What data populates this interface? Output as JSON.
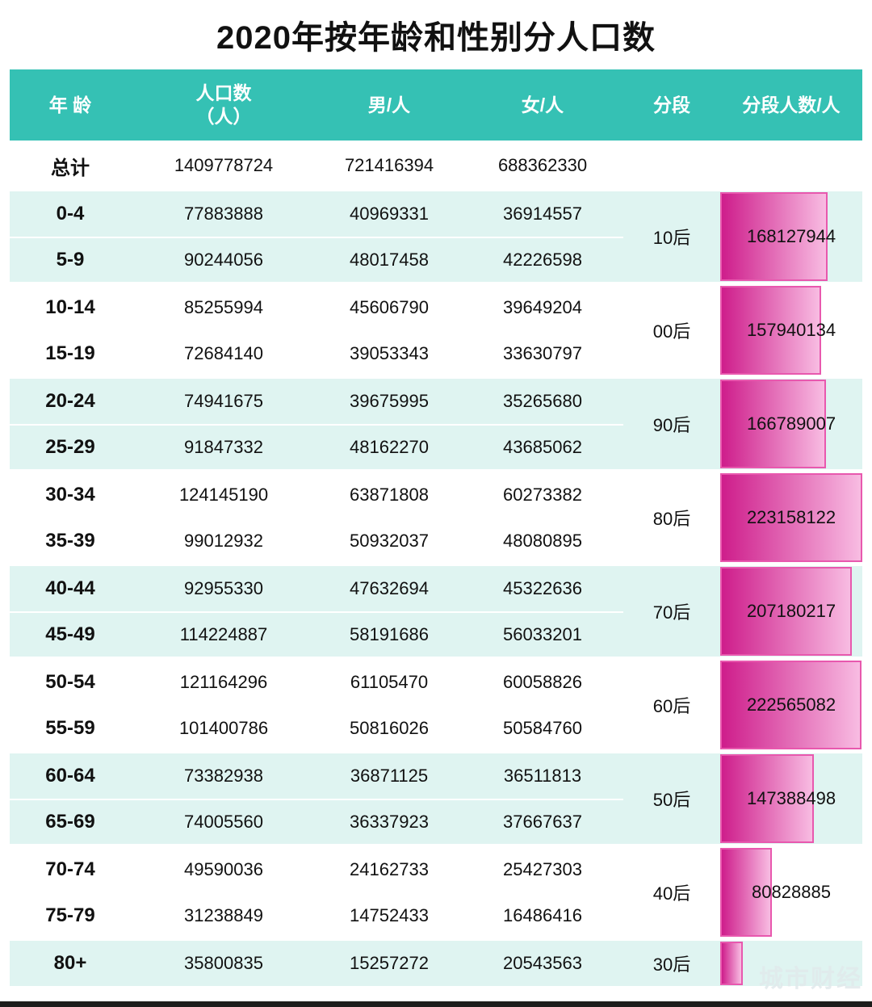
{
  "title": "2020年按年龄和性别分人口数",
  "watermark": "城市财经",
  "colors": {
    "header_bg": "#35c1b4",
    "alt_row_bg": "#dff4f1",
    "bar_gradient_start": "#ce1d8b",
    "bar_gradient_end": "#f8bce2",
    "bar_border": "#e858ae",
    "header_text": "#ffffff",
    "body_text": "#111111"
  },
  "chart_data": {
    "type": "table",
    "title": "2020年按年龄和性别分人口数",
    "headers": {
      "age": "年 龄",
      "population_line1": "人口数",
      "population_line2": "（人）",
      "male": "男/人",
      "female": "女/人",
      "segment": "分段",
      "segment_count": "分段人数/人"
    },
    "total": {
      "label": "总计",
      "population": "1409778724",
      "male": "721416394",
      "female": "688362330"
    },
    "bar_max_value": 223158122,
    "groups": [
      {
        "segment": "10后",
        "segment_value": "168127944",
        "bar_pct": 75.3,
        "rows": [
          {
            "age": "0-4",
            "population": "77883888",
            "male": "40969331",
            "female": "36914557"
          },
          {
            "age": "5-9",
            "population": "90244056",
            "male": "48017458",
            "female": "42226598"
          }
        ]
      },
      {
        "segment": "00后",
        "segment_value": "157940134",
        "bar_pct": 70.8,
        "rows": [
          {
            "age": "10-14",
            "population": "85255994",
            "male": "45606790",
            "female": "39649204"
          },
          {
            "age": "15-19",
            "population": "72684140",
            "male": "39053343",
            "female": "33630797"
          }
        ]
      },
      {
        "segment": "90后",
        "segment_value": "166789007",
        "bar_pct": 74.7,
        "rows": [
          {
            "age": "20-24",
            "population": "74941675",
            "male": "39675995",
            "female": "35265680"
          },
          {
            "age": "25-29",
            "population": "91847332",
            "male": "48162270",
            "female": "43685062"
          }
        ]
      },
      {
        "segment": "80后",
        "segment_value": "223158122",
        "bar_pct": 100,
        "rows": [
          {
            "age": "30-34",
            "population": "124145190",
            "male": "63871808",
            "female": "60273382"
          },
          {
            "age": "35-39",
            "population": "99012932",
            "male": "50932037",
            "female": "48080895"
          }
        ]
      },
      {
        "segment": "70后",
        "segment_value": "207180217",
        "bar_pct": 92.8,
        "rows": [
          {
            "age": "40-44",
            "population": "92955330",
            "male": "47632694",
            "female": "45322636"
          },
          {
            "age": "45-49",
            "population": "114224887",
            "male": "58191686",
            "female": "56033201"
          }
        ]
      },
      {
        "segment": "60后",
        "segment_value": "222565082",
        "bar_pct": 99.7,
        "rows": [
          {
            "age": "50-54",
            "population": "121164296",
            "male": "61105470",
            "female": "60058826"
          },
          {
            "age": "55-59",
            "population": "101400786",
            "male": "50816026",
            "female": "50584760"
          }
        ]
      },
      {
        "segment": "50后",
        "segment_value": "147388498",
        "bar_pct": 66.0,
        "rows": [
          {
            "age": "60-64",
            "population": "73382938",
            "male": "36871125",
            "female": "36511813"
          },
          {
            "age": "65-69",
            "population": "74005560",
            "male": "36337923",
            "female": "37667637"
          }
        ]
      },
      {
        "segment": "40后",
        "segment_value": "80828885",
        "bar_pct": 36.2,
        "rows": [
          {
            "age": "70-74",
            "population": "49590036",
            "male": "24162733",
            "female": "25427303"
          },
          {
            "age": "75-79",
            "population": "31238849",
            "male": "14752433",
            "female": "16486416"
          }
        ]
      },
      {
        "segment": "30后",
        "segment_value": "",
        "bar_pct": 16.0,
        "rows": [
          {
            "age": "80+",
            "population": "35800835",
            "male": "15257272",
            "female": "20543563"
          }
        ]
      }
    ]
  }
}
